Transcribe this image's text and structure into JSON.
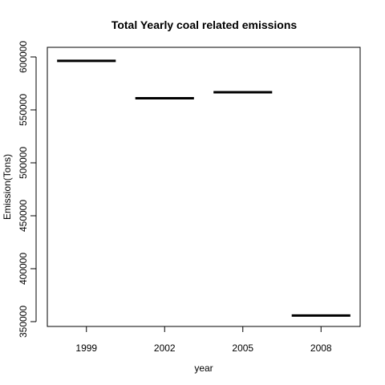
{
  "chart_data": {
    "type": "line",
    "title": "Total Yearly coal related emissions",
    "xlabel": "year",
    "ylabel": "Emission(Tons)",
    "categories": [
      "1999",
      "2002",
      "2005",
      "2008"
    ],
    "values": [
      596300,
      561000,
      566700,
      355800
    ],
    "ylim": [
      350000,
      600000
    ],
    "yticks": [
      "350000",
      "400000",
      "450000",
      "500000",
      "550000",
      "600000"
    ],
    "grid": false,
    "legend": "none"
  }
}
